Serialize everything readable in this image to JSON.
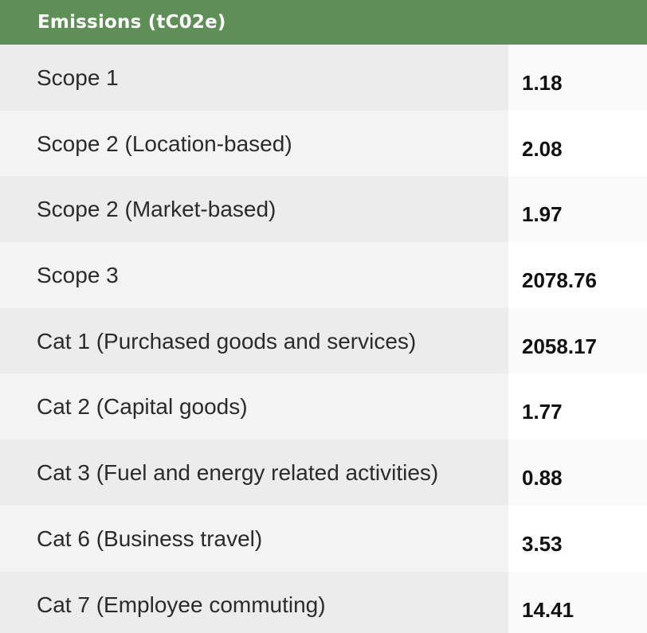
{
  "table": {
    "header": "Emissions (tC02e)",
    "colors": {
      "header_bg": "#5e8f56",
      "header_text": "#ffffff"
    },
    "rows": [
      {
        "label": "Scope 1",
        "value": "1.18"
      },
      {
        "label": "Scope 2 (Location-based)",
        "value": "2.08"
      },
      {
        "label": "Scope 2 (Market-based)",
        "value": "1.97"
      },
      {
        "label": "Scope 3",
        "value": "2078.76"
      },
      {
        "label": "Cat 1 (Purchased goods and services)",
        "value": "2058.17"
      },
      {
        "label": "Cat 2 (Capital goods)",
        "value": "1.77"
      },
      {
        "label": "Cat 3 (Fuel and energy related activities)",
        "value": "0.88"
      },
      {
        "label": "Cat 6 (Business travel)",
        "value": "3.53"
      },
      {
        "label": "Cat 7 (Employee commuting)",
        "value": "14.41"
      }
    ]
  }
}
